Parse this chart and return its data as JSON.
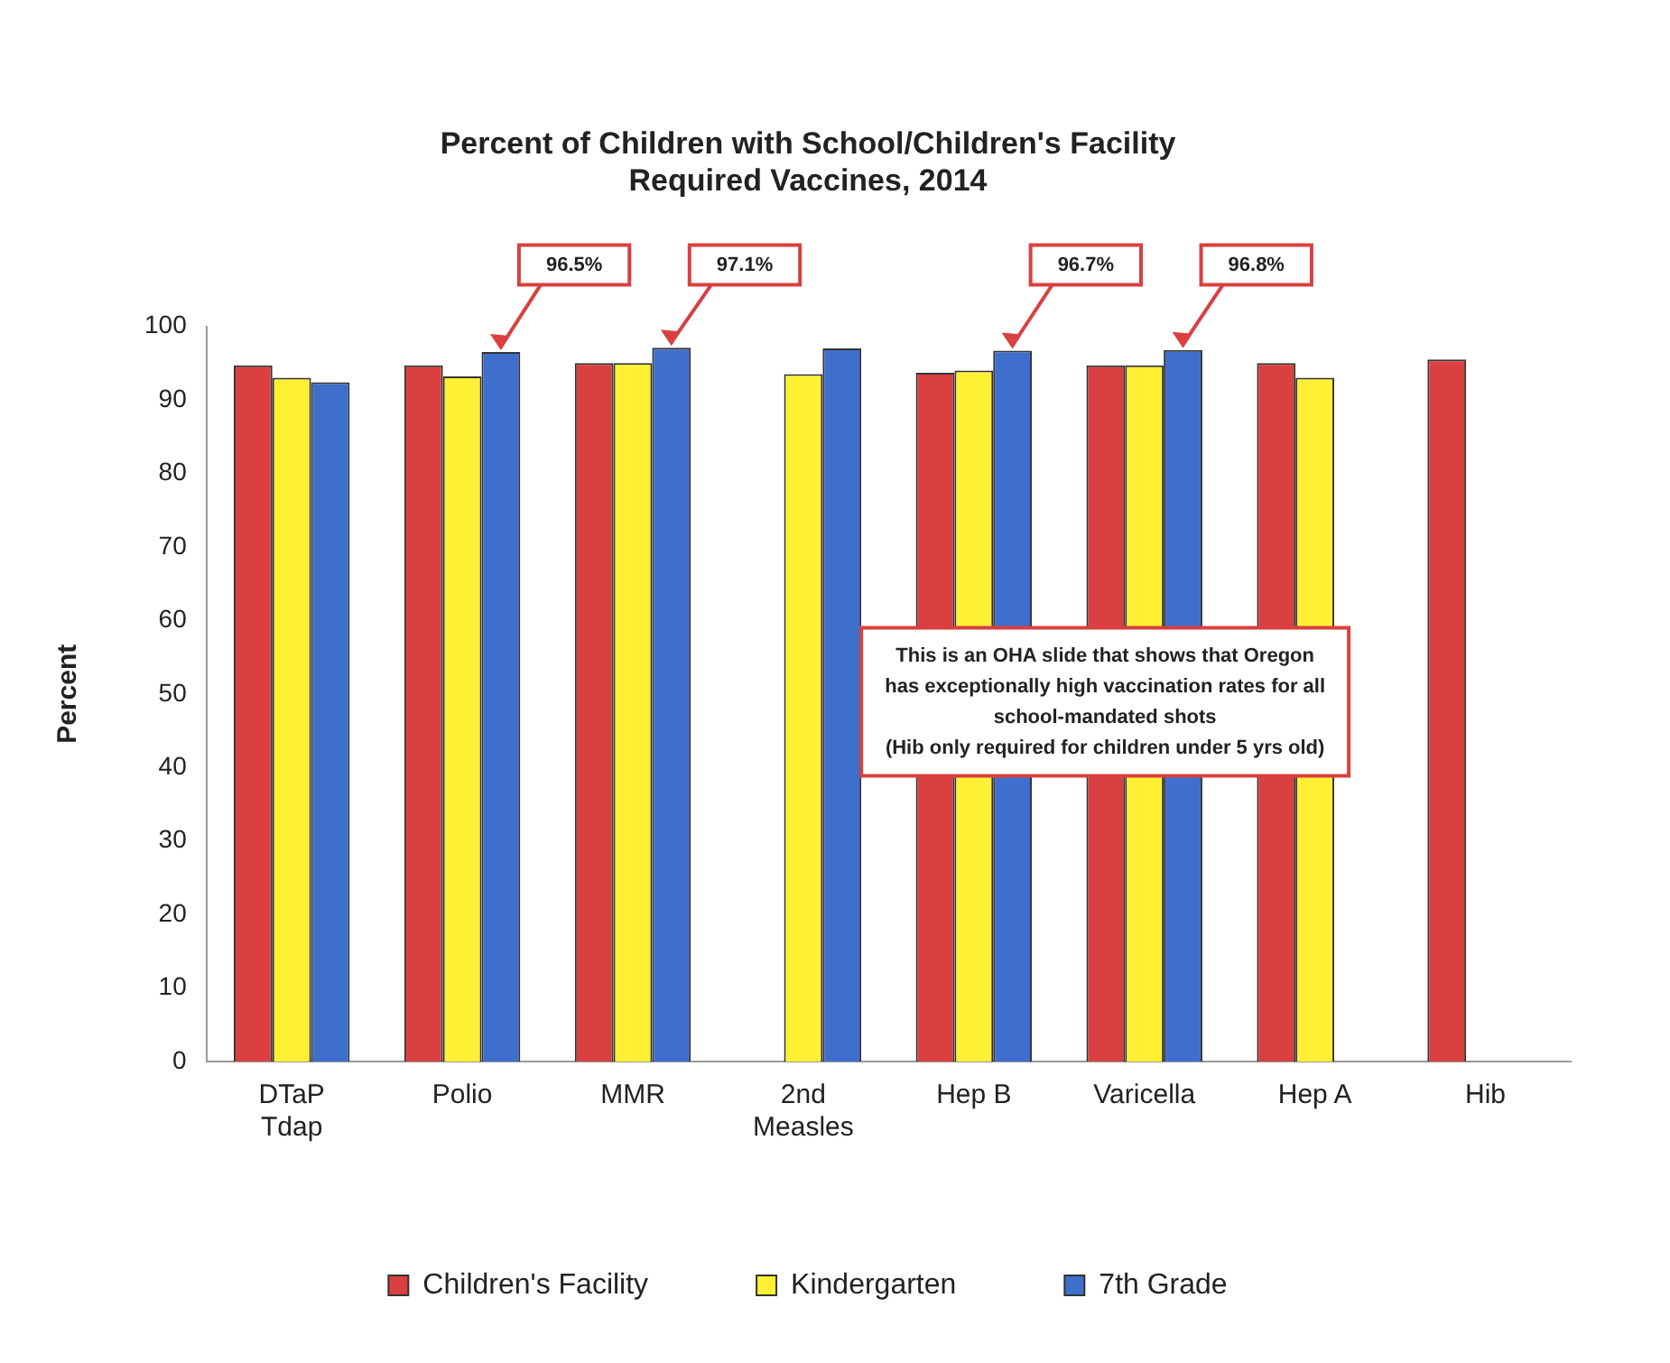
{
  "chart_data": {
    "type": "bar",
    "title": "Percent of Children with School/Children's Facility\nRequired Vaccines, 2014",
    "ylabel": "Percent",
    "categories": [
      "DTaP\nTdap",
      "Polio",
      "MMR",
      "2nd\nMeasles",
      "Hep B",
      "Varicella",
      "Hep A",
      "Hib"
    ],
    "series": [
      {
        "name": "Children's Facility",
        "color": "#d9403f",
        "values": [
          94.7,
          94.7,
          95,
          null,
          93.7,
          94.7,
          95,
          95.5
        ]
      },
      {
        "name": "Kindergarten",
        "color": "#fff033",
        "values": [
          93,
          93.2,
          95,
          93.5,
          94,
          94.7,
          93,
          null
        ]
      },
      {
        "name": "7th Grade",
        "color": "#3f6fcc",
        "values": [
          92.4,
          96.5,
          97.1,
          97,
          96.7,
          96.8,
          null,
          null
        ],
        "value_labels": [
          null,
          "96.5%",
          "97.1%",
          null,
          "96.7%",
          "96.8%",
          null,
          null
        ]
      }
    ],
    "ylim": [
      0,
      100
    ],
    "yticks": [
      0,
      10,
      20,
      30,
      40,
      50,
      60,
      70,
      80,
      90,
      100
    ],
    "grid": false,
    "legend": "bottom",
    "annotations": [
      "This is an OHA slide that shows that Oregon has exceptionally high vaccination rates for all school-mandated shots\n(Hib only required for children under 5 yrs old)"
    ]
  }
}
